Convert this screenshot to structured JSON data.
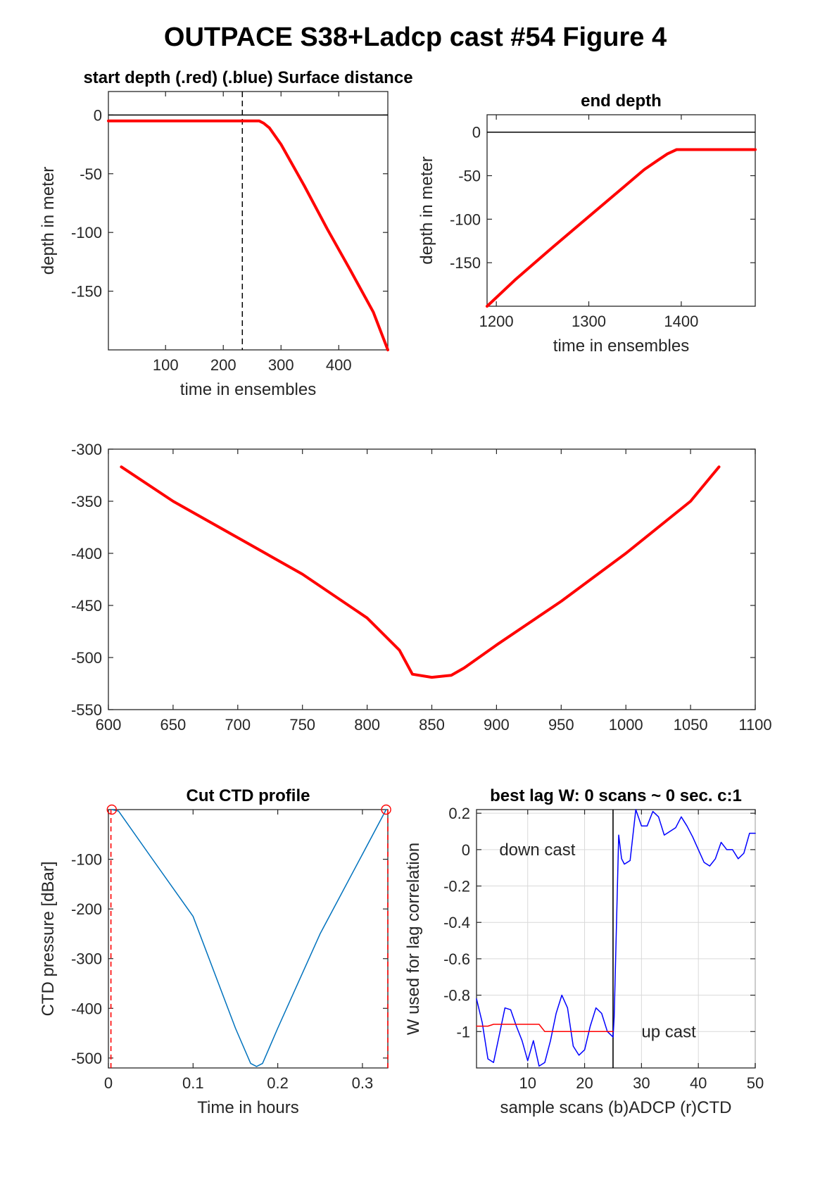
{
  "figure": {
    "title": "OUTPACE S38+Ladcp cast #54   Figure 4"
  },
  "chart_data": [
    {
      "id": "start",
      "type": "line",
      "title": "start depth (.red) (.blue) Surface distance",
      "xlabel": "time in ensembles",
      "ylabel": "depth in meter",
      "xlim": [
        1,
        485
      ],
      "ylim": [
        -200,
        20
      ],
      "xticks": [
        100,
        200,
        300,
        400
      ],
      "yticks": [
        0,
        -50,
        -100,
        -150
      ],
      "grid": false,
      "hlines": [
        0
      ],
      "vlines_dashed": [
        233
      ],
      "series": [
        {
          "color": "#ff0000",
          "x": [
            1,
            240,
            255,
            262,
            270,
            280,
            300,
            340,
            380,
            420,
            460,
            485
          ],
          "y": [
            -5,
            -5,
            -5,
            -5,
            -7,
            -11,
            -25,
            -60,
            -97,
            -132,
            -168,
            -200
          ]
        }
      ]
    },
    {
      "id": "end",
      "type": "line",
      "title": "end depth",
      "xlabel": "time in ensembles",
      "ylabel": "depth in meter",
      "xlim": [
        1190,
        1480
      ],
      "ylim": [
        -200,
        20
      ],
      "xticks": [
        1200,
        1300,
        1400
      ],
      "yticks": [
        0,
        -50,
        -100,
        -150
      ],
      "grid": false,
      "hlines": [
        0
      ],
      "series": [
        {
          "color": "#ff0000",
          "x": [
            1190,
            1220,
            1260,
            1300,
            1340,
            1360,
            1375,
            1385,
            1395,
            1410,
            1480
          ],
          "y": [
            -200,
            -170,
            -133,
            -97,
            -61,
            -43,
            -32,
            -25,
            -20,
            -20,
            -20
          ]
        }
      ]
    },
    {
      "id": "middle",
      "type": "line",
      "title": "",
      "xlabel": "",
      "ylabel": "",
      "xlim": [
        600,
        1100
      ],
      "ylim": [
        -550,
        -300
      ],
      "xticks": [
        600,
        650,
        700,
        750,
        800,
        850,
        900,
        950,
        1000,
        1050,
        1100
      ],
      "yticks": [
        -300,
        -350,
        -400,
        -450,
        -500,
        -550
      ],
      "grid": false,
      "series": [
        {
          "color": "#ff0000",
          "x": [
            610,
            650,
            700,
            750,
            800,
            825,
            835,
            850,
            865,
            875,
            900,
            950,
            1000,
            1050,
            1072
          ],
          "y": [
            -317,
            -350,
            -385,
            -420,
            -462,
            -493,
            -516,
            -519,
            -517,
            -510,
            -488,
            -446,
            -400,
            -350,
            -317
          ]
        }
      ]
    },
    {
      "id": "ctd",
      "type": "line",
      "title": "Cut CTD profile",
      "xlabel": "Time in hours",
      "ylabel": "CTD pressure [dBar]",
      "xlim": [
        0,
        0.33
      ],
      "ylim": [
        -520,
        0
      ],
      "xticks": [
        0,
        0.1,
        0.2,
        0.3
      ],
      "ytick_values": [
        -100,
        -200,
        -300,
        -400,
        -500
      ],
      "ytick_labels": [
        "-100",
        "-200",
        "-300",
        "-400",
        "-500"
      ],
      "grid": false,
      "vlines_dashed_red": [
        0.003,
        0.33
      ],
      "markers": [
        {
          "x": 0.004,
          "y": 0
        },
        {
          "x": 0.328,
          "y": 0
        }
      ],
      "series": [
        {
          "color": "#0072bd",
          "x": [
            0.004,
            0.012,
            0.05,
            0.1,
            0.15,
            0.168,
            0.175,
            0.182,
            0.2,
            0.25,
            0.3,
            0.328
          ],
          "y": [
            0,
            -3,
            -95,
            -215,
            -440,
            -511,
            -517,
            -511,
            -440,
            -250,
            -90,
            0
          ]
        }
      ]
    },
    {
      "id": "lag",
      "type": "line",
      "title": "best lag W: 0 scans ~ 0 sec.  c:1",
      "xlabel": "sample scans (b)ADCP (r)CTD",
      "ylabel": "W used for lag correlation",
      "xlim": [
        1,
        50
      ],
      "ylim": [
        -1.2,
        0.22
      ],
      "xticks": [
        10,
        20,
        30,
        40,
        50
      ],
      "ytick_values": [
        0.2,
        0,
        -0.2,
        -0.4,
        -0.6,
        -0.8,
        -1
      ],
      "ytick_labels": [
        "0.2",
        "0",
        "-0.2",
        "-0.4",
        "-0.6",
        "-0.8",
        "-1"
      ],
      "grid": true,
      "vline_solid": 25,
      "annotations": [
        {
          "text": "down cast",
          "x": 5,
          "y": 0
        },
        {
          "text": "up cast",
          "x": 30,
          "y": -1
        }
      ],
      "series": [
        {
          "color": "#0000ff",
          "x": [
            1,
            2,
            3,
            4,
            5,
            6,
            7,
            8,
            9,
            10,
            11,
            12,
            13,
            14,
            15,
            16,
            17,
            18,
            19,
            20,
            21,
            22,
            23,
            24,
            25,
            25.2,
            26,
            26.5,
            27,
            28,
            29,
            30,
            31,
            32,
            33,
            34,
            35,
            36,
            37,
            38,
            39,
            40,
            41,
            42,
            43,
            44,
            45,
            46,
            47,
            48,
            49,
            50
          ],
          "y": [
            -0.82,
            -0.95,
            -1.15,
            -1.17,
            -1.02,
            -0.87,
            -0.88,
            -0.97,
            -1.05,
            -1.16,
            -1.05,
            -1.19,
            -1.17,
            -1.05,
            -0.9,
            -0.8,
            -0.87,
            -1.08,
            -1.13,
            -1.1,
            -0.97,
            -0.87,
            -0.9,
            -1.0,
            -1.03,
            -0.92,
            0.08,
            -0.05,
            -0.08,
            -0.06,
            0.22,
            0.13,
            0.13,
            0.21,
            0.18,
            0.08,
            0.1,
            0.12,
            0.18,
            0.13,
            0.07,
            0.0,
            -0.07,
            -0.09,
            -0.05,
            0.04,
            0.0,
            0.0,
            -0.05,
            -0.02,
            0.09,
            0.09
          ]
        },
        {
          "color": "#ff0000",
          "x": [
            1,
            3,
            4,
            12,
            13,
            25
          ],
          "y": [
            -0.97,
            -0.97,
            -0.96,
            -0.96,
            -1.0,
            -1.0
          ]
        }
      ]
    }
  ]
}
